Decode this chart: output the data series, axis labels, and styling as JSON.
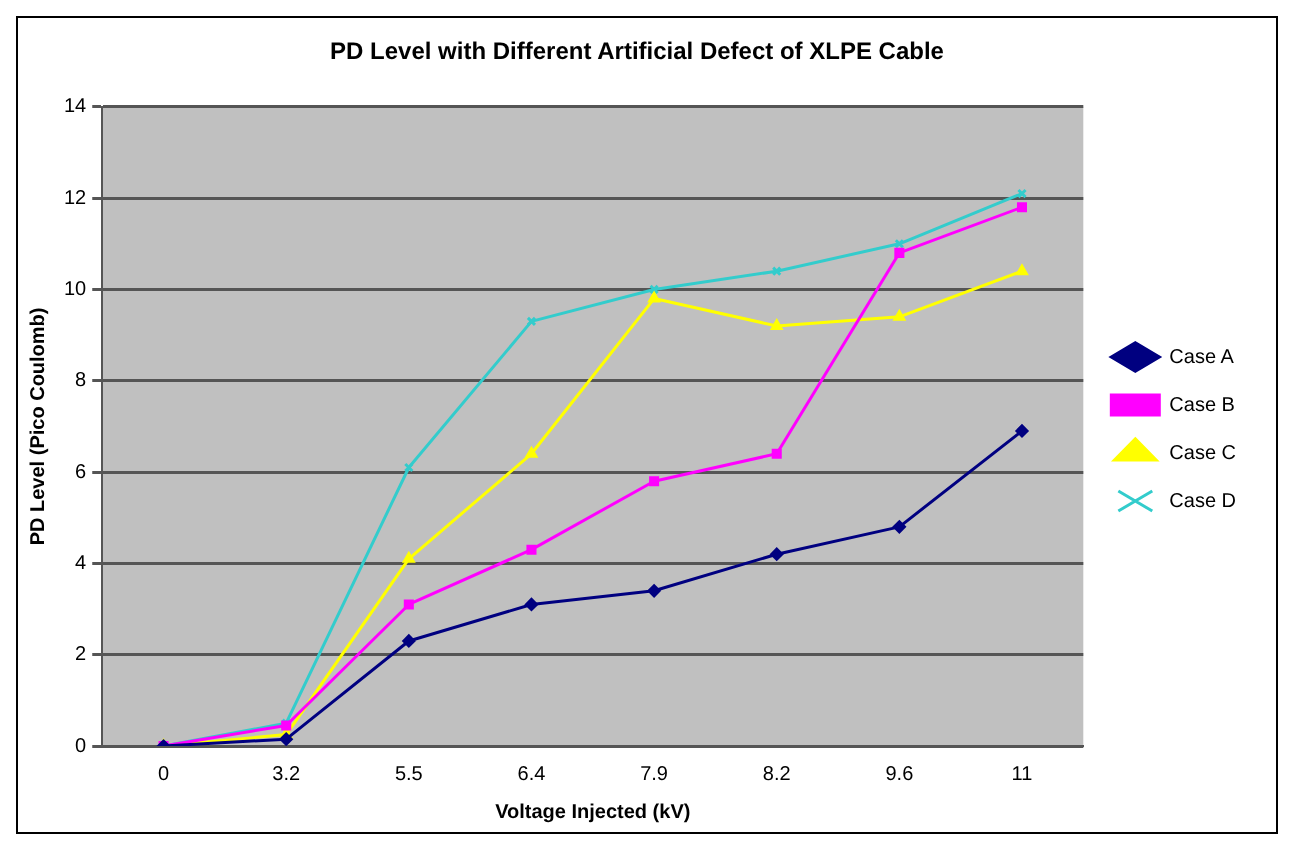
{
  "chart_data": {
    "type": "line",
    "title": "PD Level with Different Artificial Defect of XLPE Cable",
    "xlabel": "Voltage Injected (kV)",
    "ylabel": "PD Level (Pico Coulomb)",
    "categories": [
      "0",
      "3.2",
      "5.5",
      "6.4",
      "7.9",
      "8.2",
      "9.6",
      "11"
    ],
    "series": [
      {
        "name": "Case A",
        "color": "#000080",
        "marker": "diamond",
        "values": [
          0,
          0.15,
          2.3,
          3.1,
          3.4,
          4.2,
          4.8,
          6.9
        ]
      },
      {
        "name": "Case B",
        "color": "#ff00ff",
        "marker": "square",
        "values": [
          0,
          0.45,
          3.1,
          4.3,
          5.8,
          6.4,
          10.8,
          11.8
        ]
      },
      {
        "name": "Case C",
        "color": "#ffff00",
        "marker": "triangle",
        "values": [
          0,
          0.25,
          4.1,
          6.4,
          9.8,
          9.2,
          9.4,
          10.4
        ]
      },
      {
        "name": "Case D",
        "color": "#33cccc",
        "marker": "cross",
        "values": [
          0,
          0.5,
          6.1,
          9.3,
          10.0,
          10.4,
          11.0,
          12.1
        ]
      }
    ],
    "ylim": [
      0,
      14
    ],
    "yticks": [
      0,
      2,
      4,
      6,
      8,
      10,
      12,
      14
    ],
    "grid": "y",
    "legend": "right",
    "line_style": "solid"
  }
}
